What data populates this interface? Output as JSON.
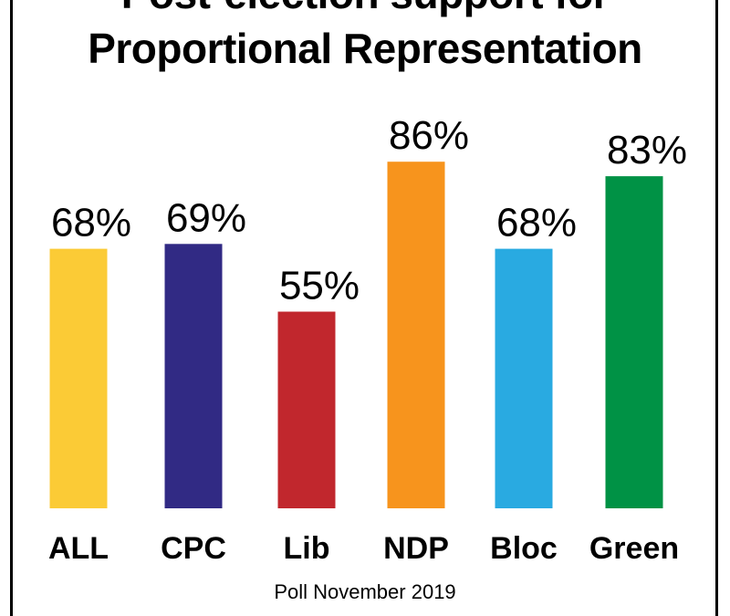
{
  "chart_data": {
    "type": "bar",
    "title": "Post-election support for Proportional Representation",
    "title_lines": [
      "Post-election support for",
      "Proportional Representation"
    ],
    "categories": [
      "ALL",
      "CPC",
      "Lib",
      "NDP",
      "Bloc",
      "Green"
    ],
    "values": [
      68,
      69,
      55,
      86,
      68,
      83
    ],
    "data_labels": [
      "68%",
      "69%",
      "55%",
      "86%",
      "68%",
      "83%"
    ],
    "colors": [
      "#fbcb36",
      "#312a84",
      "#c1272d",
      "#f7941d",
      "#29aae1",
      "#009245"
    ],
    "xlabel": "",
    "ylabel": "",
    "grid": false,
    "legend": "none",
    "footnote": "Poll November 2019"
  }
}
